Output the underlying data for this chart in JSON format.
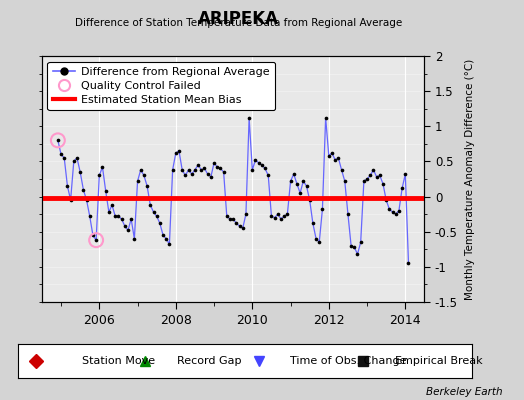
{
  "title": "ARIPEKA",
  "subtitle": "Difference of Station Temperature Data from Regional Average",
  "ylabel": "Monthly Temperature Anomaly Difference (°C)",
  "bias": -0.02,
  "ylim": [
    -1.5,
    2.0
  ],
  "xlim": [
    2004.5,
    2014.5
  ],
  "xticks": [
    2006,
    2008,
    2010,
    2012,
    2014
  ],
  "yticks": [
    -1.5,
    -1.0,
    -0.5,
    0.0,
    0.5,
    1.0,
    1.5,
    2.0
  ],
  "fig_bg_color": "#d4d4d4",
  "plot_bg_color": "#e8e8e8",
  "line_color": "#6666ff",
  "marker_color": "#000000",
  "bias_color": "#ff0000",
  "qc_color": "#ff99cc",
  "watermark": "Berkeley Earth",
  "times": [
    2004.917,
    2005.0,
    2005.083,
    2005.167,
    2005.25,
    2005.333,
    2005.417,
    2005.5,
    2005.583,
    2005.667,
    2005.75,
    2005.833,
    2005.917,
    2006.0,
    2006.083,
    2006.167,
    2006.25,
    2006.333,
    2006.417,
    2006.5,
    2006.583,
    2006.667,
    2006.75,
    2006.833,
    2006.917,
    2007.0,
    2007.083,
    2007.167,
    2007.25,
    2007.333,
    2007.417,
    2007.5,
    2007.583,
    2007.667,
    2007.75,
    2007.833,
    2007.917,
    2008.0,
    2008.083,
    2008.167,
    2008.25,
    2008.333,
    2008.417,
    2008.5,
    2008.583,
    2008.667,
    2008.75,
    2008.833,
    2008.917,
    2009.0,
    2009.083,
    2009.167,
    2009.25,
    2009.333,
    2009.417,
    2009.5,
    2009.583,
    2009.667,
    2009.75,
    2009.833,
    2009.917,
    2010.0,
    2010.083,
    2010.167,
    2010.25,
    2010.333,
    2010.417,
    2010.5,
    2010.583,
    2010.667,
    2010.75,
    2010.833,
    2010.917,
    2011.0,
    2011.083,
    2011.167,
    2011.25,
    2011.333,
    2011.417,
    2011.5,
    2011.583,
    2011.667,
    2011.75,
    2011.833,
    2011.917,
    2012.0,
    2012.083,
    2012.167,
    2012.25,
    2012.333,
    2012.417,
    2012.5,
    2012.583,
    2012.667,
    2012.75,
    2012.833,
    2012.917,
    2013.0,
    2013.083,
    2013.167,
    2013.25,
    2013.333,
    2013.417,
    2013.5,
    2013.583,
    2013.667,
    2013.75,
    2013.833,
    2013.917,
    2014.0,
    2014.083
  ],
  "values": [
    0.8,
    0.6,
    0.55,
    0.15,
    -0.05,
    0.5,
    0.55,
    0.35,
    0.1,
    -0.05,
    -0.28,
    -0.55,
    -0.62,
    0.3,
    0.42,
    0.08,
    -0.22,
    -0.12,
    -0.28,
    -0.28,
    -0.32,
    -0.42,
    -0.48,
    -0.32,
    -0.6,
    0.22,
    0.38,
    0.3,
    0.15,
    -0.12,
    -0.22,
    -0.28,
    -0.38,
    -0.55,
    -0.6,
    -0.68,
    0.38,
    0.62,
    0.65,
    0.38,
    0.3,
    0.38,
    0.32,
    0.38,
    0.45,
    0.38,
    0.4,
    0.32,
    0.28,
    0.48,
    0.42,
    0.4,
    0.35,
    -0.28,
    -0.32,
    -0.32,
    -0.38,
    -0.42,
    -0.45,
    -0.25,
    1.12,
    0.38,
    0.52,
    0.48,
    0.45,
    0.4,
    0.3,
    -0.28,
    -0.3,
    -0.25,
    -0.32,
    -0.28,
    -0.25,
    0.22,
    0.32,
    0.18,
    0.05,
    0.22,
    0.15,
    -0.05,
    -0.38,
    -0.6,
    -0.65,
    -0.18,
    1.12,
    0.58,
    0.62,
    0.52,
    0.55,
    0.38,
    0.22,
    -0.25,
    -0.7,
    -0.72,
    -0.82,
    -0.65,
    0.22,
    0.25,
    0.3,
    0.38,
    0.28,
    0.3,
    0.18,
    -0.05,
    -0.18,
    -0.22,
    -0.25,
    -0.2,
    0.12,
    0.32,
    -0.95
  ],
  "qc_failed_indices": [
    0,
    12
  ],
  "bottom_legend": [
    {
      "label": "Station Move",
      "marker": "D",
      "color": "#cc0000"
    },
    {
      "label": "Record Gap",
      "marker": "^",
      "color": "#008800"
    },
    {
      "label": "Time of Obs. Change",
      "marker": "v",
      "color": "#4444ff"
    },
    {
      "label": "Empirical Break",
      "marker": "s",
      "color": "#111111"
    }
  ]
}
